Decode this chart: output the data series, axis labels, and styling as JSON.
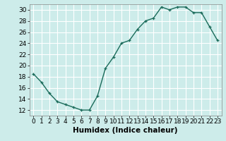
{
  "x": [
    0,
    1,
    2,
    3,
    4,
    5,
    6,
    7,
    8,
    9,
    10,
    11,
    12,
    13,
    14,
    15,
    16,
    17,
    18,
    19,
    20,
    21,
    22,
    23
  ],
  "y": [
    18.5,
    17,
    15,
    13.5,
    13,
    12.5,
    12,
    12,
    14.5,
    19.5,
    21.5,
    24,
    24.5,
    26.5,
    28,
    28.5,
    30.5,
    30,
    30.5,
    30.5,
    29.5,
    29.5,
    27,
    24.5
  ],
  "line_color": "#1a6b5a",
  "marker": "+",
  "bg_color": "#cdecea",
  "grid_color": "#ffffff",
  "xlabel": "Humidex (Indice chaleur)",
  "xlim": [
    -0.5,
    23.5
  ],
  "ylim": [
    11,
    31
  ],
  "yticks": [
    12,
    14,
    16,
    18,
    20,
    22,
    24,
    26,
    28,
    30
  ],
  "xticks": [
    0,
    1,
    2,
    3,
    4,
    5,
    6,
    7,
    8,
    9,
    10,
    11,
    12,
    13,
    14,
    15,
    16,
    17,
    18,
    19,
    20,
    21,
    22,
    23
  ],
  "xtick_labels": [
    "0",
    "1",
    "2",
    "3",
    "4",
    "5",
    "6",
    "7",
    "8",
    "9",
    "10",
    "11",
    "12",
    "13",
    "14",
    "15",
    "16",
    "17",
    "18",
    "19",
    "20",
    "21",
    "22",
    "23"
  ],
  "xlabel_fontsize": 7.5,
  "tick_fontsize": 6.5,
  "linewidth": 1.0,
  "markersize": 3.5,
  "markeredgewidth": 0.9
}
